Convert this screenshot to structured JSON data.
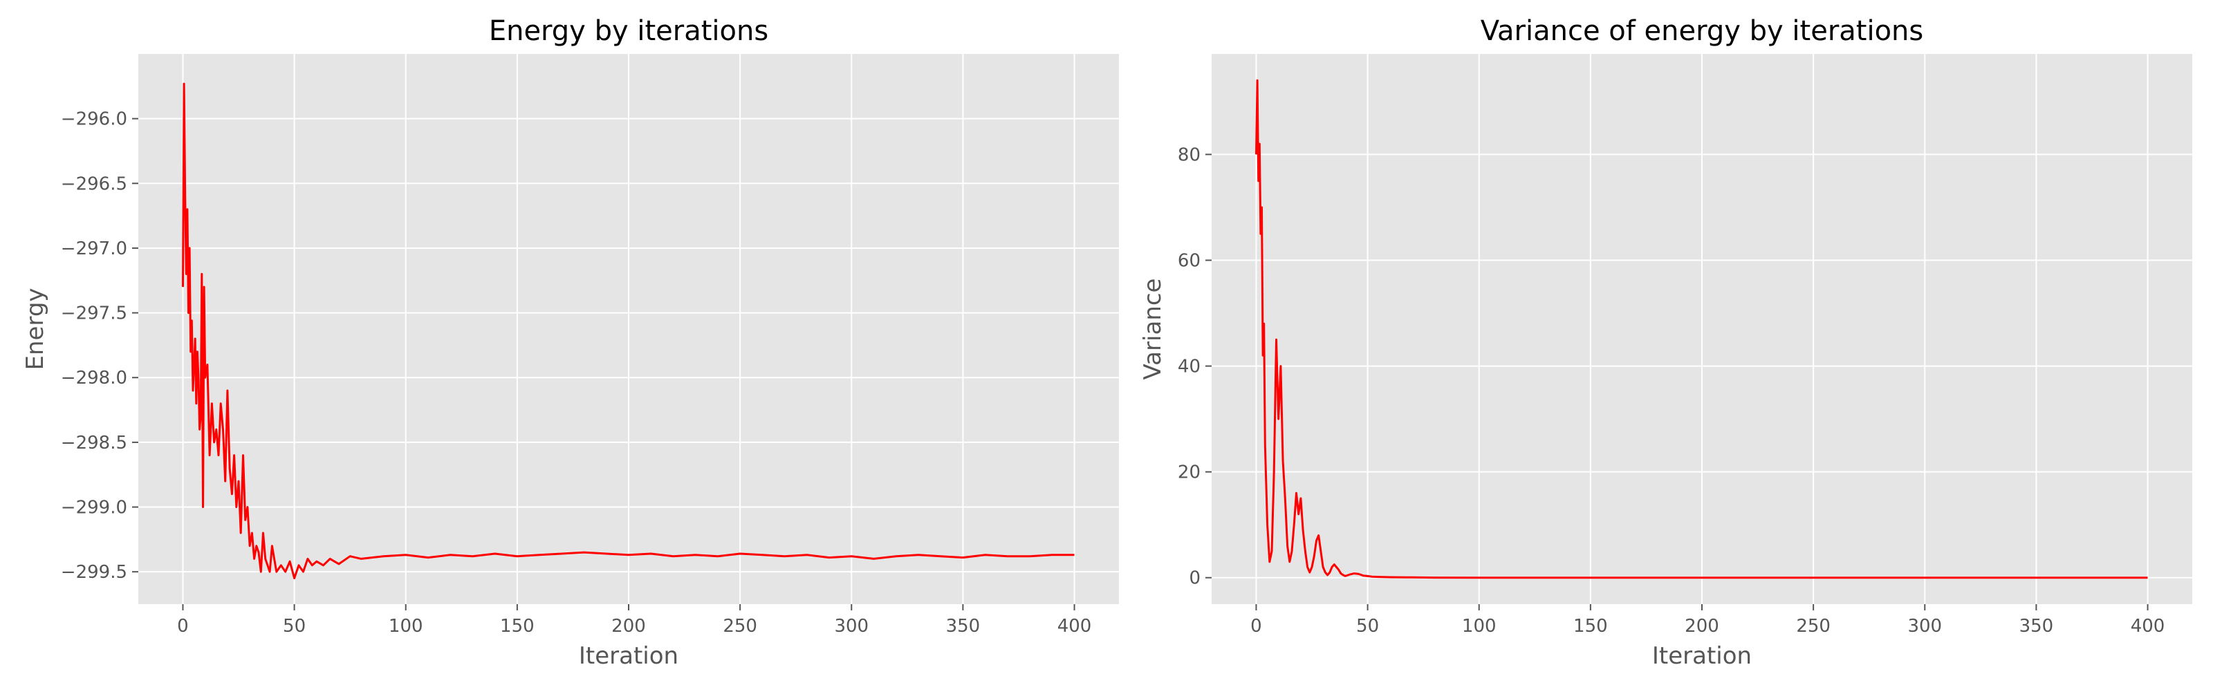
{
  "chart_data": [
    {
      "type": "line",
      "title": "Energy by iterations",
      "xlabel": "Iteration",
      "ylabel": "Energy",
      "xlim": [
        -20,
        420
      ],
      "ylim": [
        -299.75,
        -295.5
      ],
      "xticks": [
        0,
        50,
        100,
        150,
        200,
        250,
        300,
        350,
        400
      ],
      "xtick_labels": [
        "0",
        "50",
        "100",
        "150",
        "200",
        "250",
        "300",
        "350",
        "400"
      ],
      "yticks": [
        -296.0,
        -296.5,
        -297.0,
        -297.5,
        -298.0,
        -298.5,
        -299.0,
        -299.5
      ],
      "ytick_labels": [
        "−296.0",
        "−296.5",
        "−297.0",
        "−297.5",
        "−298.0",
        "−298.5",
        "−299.0",
        "−299.5"
      ],
      "grid": true,
      "line_color": "#ff0000",
      "series": [
        {
          "x": [
            0,
            0.5,
            1,
            1.5,
            2,
            2.5,
            3,
            3.5,
            4,
            4.5,
            5,
            5.5,
            6,
            6.5,
            7,
            7.5,
            8,
            8.5,
            9,
            9.5,
            10,
            11,
            12,
            13,
            14,
            15,
            16,
            17,
            18,
            19,
            20,
            21,
            22,
            23,
            24,
            25,
            26,
            27,
            28,
            29,
            30,
            31,
            32,
            33,
            34,
            35,
            36,
            37,
            38,
            39,
            40,
            42,
            44,
            46,
            48,
            50,
            52,
            54,
            56,
            58,
            60,
            63,
            66,
            70,
            75,
            80,
            90,
            100,
            110,
            120,
            130,
            140,
            150,
            160,
            170,
            180,
            190,
            200,
            210,
            220,
            230,
            240,
            250,
            260,
            270,
            280,
            290,
            300,
            310,
            320,
            330,
            340,
            350,
            360,
            370,
            380,
            390,
            400
          ],
          "y": [
            -297.3,
            -295.73,
            -296.6,
            -297.2,
            -296.7,
            -297.5,
            -297.0,
            -297.8,
            -297.56,
            -298.1,
            -297.9,
            -297.7,
            -298.2,
            -297.8,
            -298.0,
            -298.4,
            -298.3,
            -297.2,
            -299.0,
            -297.3,
            -298.0,
            -297.9,
            -298.6,
            -298.2,
            -298.5,
            -298.4,
            -298.6,
            -298.2,
            -298.4,
            -298.8,
            -298.1,
            -298.7,
            -298.9,
            -298.6,
            -299.0,
            -298.8,
            -299.2,
            -298.6,
            -299.1,
            -299.0,
            -299.3,
            -299.2,
            -299.4,
            -299.3,
            -299.35,
            -299.5,
            -299.2,
            -299.4,
            -299.45,
            -299.5,
            -299.3,
            -299.5,
            -299.45,
            -299.5,
            -299.42,
            -299.55,
            -299.45,
            -299.5,
            -299.4,
            -299.45,
            -299.42,
            -299.45,
            -299.4,
            -299.44,
            -299.38,
            -299.4,
            -299.38,
            -299.37,
            -299.39,
            -299.37,
            -299.38,
            -299.36,
            -299.38,
            -299.37,
            -299.36,
            -299.35,
            -299.36,
            -299.37,
            -299.36,
            -299.38,
            -299.37,
            -299.38,
            -299.36,
            -299.37,
            -299.38,
            -299.37,
            -299.39,
            -299.38,
            -299.4,
            -299.38,
            -299.37,
            -299.38,
            -299.39,
            -299.37,
            -299.38,
            -299.38,
            -299.37,
            -299.37
          ]
        }
      ]
    },
    {
      "type": "line",
      "title": "Variance of energy by iterations",
      "xlabel": "Iteration",
      "ylabel": "Variance",
      "xlim": [
        -20,
        420
      ],
      "ylim": [
        -5,
        99
      ],
      "xticks": [
        0,
        50,
        100,
        150,
        200,
        250,
        300,
        350,
        400
      ],
      "xtick_labels": [
        "0",
        "50",
        "100",
        "150",
        "200",
        "250",
        "300",
        "350",
        "400"
      ],
      "yticks": [
        0,
        20,
        40,
        60,
        80
      ],
      "ytick_labels": [
        "0",
        "20",
        "40",
        "60",
        "80"
      ],
      "grid": true,
      "line_color": "#ff0000",
      "series": [
        {
          "x": [
            0,
            0.5,
            1,
            1.5,
            2,
            2.5,
            3,
            3.5,
            4,
            5,
            6,
            7,
            8,
            9,
            10,
            11,
            12,
            13,
            14,
            15,
            16,
            17,
            18,
            19,
            20,
            21,
            22,
            23,
            24,
            25,
            26,
            27,
            28,
            29,
            30,
            31,
            32,
            33,
            34,
            35,
            36,
            37,
            38,
            39,
            40,
            42,
            44,
            46,
            48,
            50,
            52,
            55,
            60,
            70,
            80,
            100,
            150,
            200,
            250,
            300,
            350,
            400
          ],
          "y": [
            80,
            94,
            75,
            82,
            65,
            70,
            42,
            48,
            25,
            10,
            3,
            5,
            20,
            45,
            30,
            40,
            22,
            15,
            6,
            3,
            5,
            10,
            16,
            12,
            15,
            9,
            5,
            2,
            1,
            2,
            4,
            7,
            8,
            5,
            2,
            1,
            0.5,
            1,
            2,
            2.5,
            2,
            1.5,
            0.8,
            0.5,
            0.3,
            0.6,
            0.8,
            0.7,
            0.4,
            0.3,
            0.2,
            0.15,
            0.1,
            0.05,
            0.02,
            0.01,
            0,
            0,
            0,
            0,
            0,
            0
          ]
        }
      ]
    }
  ]
}
